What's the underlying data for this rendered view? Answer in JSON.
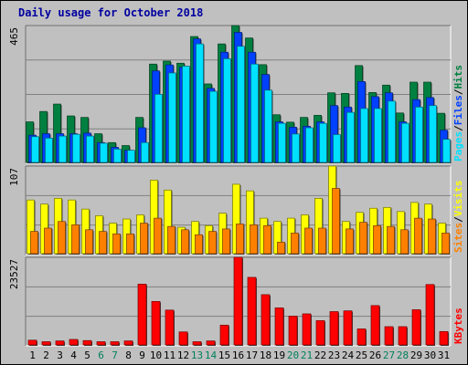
{
  "page_title": "Daily usage for October 2018",
  "chart_data": [
    {
      "type": "bar",
      "panel": "hits-files-pages",
      "ymax_label": "465",
      "ylim": [
        0,
        465
      ],
      "legend_right": [
        "Pages",
        "Files",
        "Hits"
      ],
      "categories": [
        "1",
        "2",
        "3",
        "4",
        "5",
        "6",
        "7",
        "8",
        "9",
        "10",
        "11",
        "12",
        "13",
        "14",
        "15",
        "16",
        "17",
        "18",
        "19",
        "20",
        "21",
        "22",
        "23",
        "24",
        "25",
        "26",
        "27",
        "28",
        "29",
        "30",
        "31"
      ],
      "weekend_days": [
        "6",
        "7",
        "13",
        "14",
        "20",
        "21",
        "27",
        "28"
      ],
      "series": [
        {
          "name": "Hits",
          "color": "#008040",
          "values": [
            140,
            175,
            200,
            160,
            155,
            100,
            70,
            60,
            155,
            335,
            345,
            338,
            428,
            268,
            403,
            465,
            423,
            333,
            164,
            139,
            155,
            162,
            238,
            236,
            330,
            239,
            264,
            170,
            274,
            274,
            169
          ]
        },
        {
          "name": "Files",
          "color": "#0040ff",
          "values": [
            95,
            100,
            100,
            100,
            102,
            70,
            54,
            44,
            120,
            312,
            332,
            324,
            420,
            253,
            375,
            442,
            375,
            300,
            140,
            122,
            125,
            140,
            195,
            190,
            276,
            225,
            238,
            140,
            215,
            222,
            112
          ]
        },
        {
          "name": "Pages",
          "color": "#00e0ff",
          "values": [
            90,
            85,
            92,
            98,
            92,
            68,
            48,
            44,
            70,
            233,
            305,
            328,
            403,
            243,
            353,
            395,
            335,
            247,
            135,
            99,
            120,
            135,
            97,
            172,
            185,
            185,
            210,
            135,
            190,
            195,
            81
          ]
        }
      ]
    },
    {
      "type": "bar",
      "panel": "visits-sites",
      "ymax_label": "107",
      "ylim": [
        0,
        107
      ],
      "legend_right": [
        "Sites",
        "Visits"
      ],
      "series": [
        {
          "name": "Visits",
          "color": "#ffff00",
          "values": [
            66,
            61,
            68,
            66,
            55,
            47,
            38,
            43,
            48,
            90,
            78,
            33,
            40,
            35,
            50,
            85,
            77,
            44,
            40,
            44,
            48,
            68,
            107,
            40,
            51,
            56,
            57,
            52,
            63,
            61,
            38
          ]
        },
        {
          "name": "Sites",
          "color": "#ff8000",
          "values": [
            28,
            32,
            40,
            36,
            30,
            28,
            25,
            25,
            38,
            44,
            34,
            30,
            24,
            28,
            31,
            37,
            36,
            35,
            15,
            26,
            32,
            32,
            80,
            31,
            39,
            35,
            34,
            30,
            44,
            43,
            26
          ]
        }
      ]
    },
    {
      "type": "bar",
      "panel": "kbytes",
      "ymax_label": "23527",
      "ylim": [
        0,
        23527
      ],
      "legend_right": [
        "KBytes"
      ],
      "series": [
        {
          "name": "KBytes",
          "color": "#ff0000",
          "values": [
            1500,
            1100,
            1300,
            1700,
            1400,
            1100,
            1100,
            1300,
            16400,
            11800,
            9500,
            3700,
            1100,
            1300,
            5500,
            23527,
            18200,
            13600,
            10100,
            7900,
            8500,
            6700,
            9100,
            9300,
            4500,
            10700,
            5100,
            5100,
            9600,
            16300,
            3800
          ]
        }
      ]
    }
  ]
}
